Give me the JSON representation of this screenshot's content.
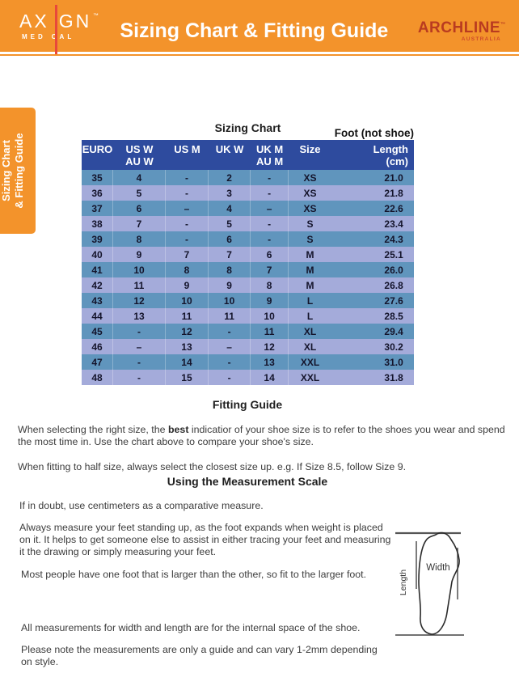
{
  "header": {
    "title": "Sizing Chart & Fitting Guide",
    "bg_color": "#F3932B",
    "axign_logo": {
      "word_left": "AX",
      "word_right": "GN",
      "tm": "™",
      "sub_left": "MED",
      "sub_right": "CAL",
      "accent_color": "#E8483B"
    },
    "archline_logo": {
      "name": "ARCHLINE",
      "tm": "™",
      "subtitle": "AUSTRALIA",
      "color": "#B93B20"
    }
  },
  "side_tab": {
    "line1": "Sizing Chart",
    "line2": "& Fitting Guide",
    "bg_color": "#F3932B"
  },
  "sizing_chart": {
    "title": "Sizing Chart",
    "note": "Foot (not shoe)",
    "header_bg": "#2E4B9E",
    "row_colors": [
      "#6095BD",
      "#A4ABDA"
    ],
    "columns": [
      {
        "l1": "EURO",
        "l2": ""
      },
      {
        "l1": "US W",
        "l2": "AU W"
      },
      {
        "l1": "US M",
        "l2": ""
      },
      {
        "l1": "UK W",
        "l2": ""
      },
      {
        "l1": "UK M",
        "l2": "AU M"
      },
      {
        "l1": "Size",
        "l2": ""
      },
      {
        "l1": "",
        "l2": ""
      },
      {
        "l1": "Length",
        "l2": "(cm)"
      }
    ],
    "rows": [
      [
        "35",
        "4",
        "-",
        "2",
        "-",
        "XS",
        "21.0"
      ],
      [
        "36",
        "5",
        "-",
        "3",
        "-",
        "XS",
        "21.8"
      ],
      [
        "37",
        "6",
        "–",
        "4",
        "–",
        "XS",
        "22.6"
      ],
      [
        "38",
        "7",
        "-",
        "5",
        "-",
        "S",
        "23.4"
      ],
      [
        "39",
        "8",
        "-",
        "6",
        "-",
        "S",
        "24.3"
      ],
      [
        "40",
        "9",
        "7",
        "7",
        "6",
        "M",
        "25.1"
      ],
      [
        "41",
        "10",
        "8",
        "8",
        "7",
        "M",
        "26.0"
      ],
      [
        "42",
        "11",
        "9",
        "9",
        "8",
        "M",
        "26.8"
      ],
      [
        "43",
        "12",
        "10",
        "10",
        "9",
        "L",
        "27.6"
      ],
      [
        "44",
        "13",
        "11",
        "11",
        "10",
        "L",
        "28.5"
      ],
      [
        "45",
        "-",
        "12",
        "-",
        "11",
        "XL",
        "29.4"
      ],
      [
        "46",
        "–",
        "13",
        "–",
        "12",
        "XL",
        "30.2"
      ],
      [
        "47",
        "-",
        "14",
        "-",
        "13",
        "XXL",
        "31.0"
      ],
      [
        "48",
        "-",
        "15",
        "-",
        "14",
        "XXL",
        "31.8"
      ]
    ]
  },
  "fitting_guide": {
    "heading": "Fitting Guide",
    "p1_before": "When selecting the right size, the ",
    "p1_bold": "best",
    "p1_after": " indicatior of your shoe size is to refer to the shoes you wear and spend\nthe most time in. Use the chart above to compare your shoe's size.",
    "p2": "When fitting to half size, always select the closest size up. e.g. If Size 8.5, follow Size 9."
  },
  "measurement_scale": {
    "heading": "Using the Measurement Scale",
    "p1": "If in doubt, use centimeters as a comparative measure.",
    "p2": "Always measure your feet standing up, as the foot expands when weight is placed\non it. It helps to get someone else to assist in either tracing your feet and measuring\nit the drawing or simply measuring your feet.",
    "p3": "Most people have one foot that is larger than the other, so fit to the larger foot.",
    "p4": "All measurements for width and length are for the internal space of the shoe.",
    "p5": "Please note the measurements are only a guide and can vary 1-2mm depending\non style."
  },
  "diagram": {
    "width_label": "Width",
    "length_label": "Length"
  }
}
